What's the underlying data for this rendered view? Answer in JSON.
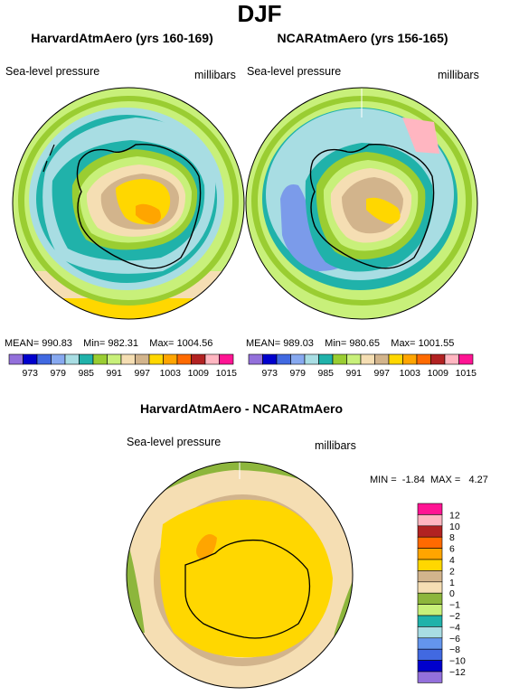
{
  "title": "DJF",
  "panels": [
    {
      "title": "HarvardAtmAero (yrs 160-169)",
      "variable": "Sea-level pressure",
      "units": "millibars",
      "mean_label": "MEAN=",
      "mean": "990.83",
      "min_label": "Min=",
      "min": "982.31",
      "max_label": "Max=",
      "max": "1004.56"
    },
    {
      "title": "NCARAtmAero (yrs 156-165)",
      "variable": "Sea-level pressure",
      "units": "millibars",
      "mean_label": "MEAN=",
      "mean": "989.03",
      "min_label": "Min=",
      "min": "980.65",
      "max_label": "Max=",
      "max": "1001.55"
    }
  ],
  "colorbar": {
    "levels": [
      "973",
      "979",
      "985",
      "991",
      "997",
      "1003",
      "1009",
      "1015"
    ],
    "colors": [
      "#9370DB",
      "#0000CD",
      "#4169E1",
      "#87A9F0",
      "#A8DDE3",
      "#20B2AA",
      "#9ACD32",
      "#C8F07A",
      "#F5DEB3",
      "#D2B48C",
      "#FFD700",
      "#FFA500",
      "#FF6A00",
      "#B22222",
      "#FFB6C1",
      "#FF1493"
    ]
  },
  "diff": {
    "title": "HarvardAtmAero - NCARAtmAero",
    "variable": "Sea-level pressure",
    "units": "millibars",
    "min_label": "MIN =",
    "min": "-1.84",
    "max_label": "MAX =",
    "max": "4.27",
    "levels": [
      "12",
      "10",
      "8",
      "6",
      "4",
      "2",
      "1",
      "0",
      "−1",
      "−2",
      "−4",
      "−6",
      "−8",
      "−10",
      "−12"
    ],
    "colors": [
      "#FF1493",
      "#FFB6C1",
      "#B22222",
      "#FF6A00",
      "#FFA500",
      "#FFD700",
      "#D2B48C",
      "#F5DEB3",
      "#8DB63C",
      "#C8F07A",
      "#20B2AA",
      "#A8DDE3",
      "#6495ED",
      "#4169E1",
      "#0000CD",
      "#9370DB"
    ]
  },
  "palette": {
    "teal": "#20B2AA",
    "light_blue": "#A8DDE3",
    "light_green": "#C8F07A",
    "green": "#9ACD32",
    "wheat": "#F5DEB3",
    "tan": "#D2B48C",
    "yellow": "#FFD700",
    "orange": "#FFA500",
    "cornflower": "#7B9BEA",
    "coast": "#000000"
  }
}
